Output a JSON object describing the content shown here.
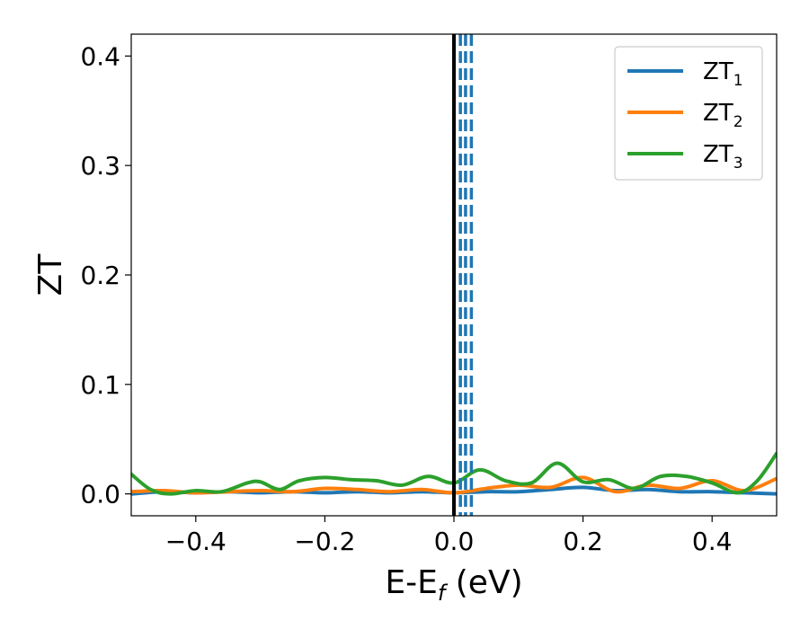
{
  "chart_data": {
    "type": "line",
    "title": "",
    "xlabel": {
      "main": "E-E",
      "sub": "f",
      "unit": " (eV)"
    },
    "ylabel": "ZT",
    "xlim": [
      -0.5,
      0.5
    ],
    "ylim": [
      -0.02,
      0.42
    ],
    "xticks": [
      -0.4,
      -0.2,
      0.0,
      0.2,
      0.4
    ],
    "xtick_labels": [
      "−0.4",
      "−0.2",
      "0.0",
      "0.2",
      "0.4"
    ],
    "yticks": [
      0.0,
      0.1,
      0.2,
      0.3,
      0.4
    ],
    "ytick_labels": [
      "0.0",
      "0.1",
      "0.2",
      "0.3",
      "0.4"
    ],
    "grid": false,
    "legend_position": "top-right",
    "vertical_solid_line": {
      "x": 0.0,
      "color": "#000000"
    },
    "vertical_dashed_lines": {
      "x": [
        0.01,
        0.018,
        0.027
      ],
      "color": "#1f77b4"
    },
    "series": [
      {
        "name": "ZT1",
        "label_main": "ZT",
        "label_sub": "1",
        "color": "#1f77b4",
        "x": [
          -0.5,
          -0.45,
          -0.4,
          -0.35,
          -0.3,
          -0.25,
          -0.2,
          -0.15,
          -0.1,
          -0.05,
          0.0,
          0.05,
          0.1,
          0.15,
          0.2,
          0.25,
          0.3,
          0.35,
          0.4,
          0.45,
          0.5
        ],
        "y": [
          0.0,
          0.002,
          0.001,
          0.002,
          0.001,
          0.002,
          0.001,
          0.002,
          0.001,
          0.002,
          0.001,
          0.002,
          0.002,
          0.004,
          0.006,
          0.003,
          0.004,
          0.002,
          0.002,
          0.001,
          0.0
        ]
      },
      {
        "name": "ZT2",
        "label_main": "ZT",
        "label_sub": "2",
        "color": "#ff7f0e",
        "x": [
          -0.5,
          -0.45,
          -0.4,
          -0.35,
          -0.3,
          -0.25,
          -0.2,
          -0.15,
          -0.1,
          -0.05,
          0.0,
          0.05,
          0.1,
          0.15,
          0.2,
          0.25,
          0.3,
          0.35,
          0.4,
          0.45,
          0.5
        ],
        "y": [
          0.002,
          0.003,
          0.001,
          0.002,
          0.003,
          0.002,
          0.005,
          0.004,
          0.002,
          0.004,
          0.001,
          0.005,
          0.008,
          0.006,
          0.015,
          0.002,
          0.008,
          0.005,
          0.012,
          0.003,
          0.014
        ]
      },
      {
        "name": "ZT3",
        "label_main": "ZT",
        "label_sub": "3",
        "color": "#2ca02c",
        "x": [
          -0.5,
          -0.47,
          -0.44,
          -0.4,
          -0.36,
          -0.32,
          -0.3,
          -0.27,
          -0.24,
          -0.2,
          -0.16,
          -0.12,
          -0.08,
          -0.04,
          0.0,
          0.04,
          0.08,
          0.12,
          0.16,
          0.2,
          0.24,
          0.28,
          0.32,
          0.36,
          0.4,
          0.44,
          0.47,
          0.5
        ],
        "y": [
          0.018,
          0.004,
          0.0,
          0.003,
          0.002,
          0.01,
          0.011,
          0.004,
          0.012,
          0.015,
          0.013,
          0.012,
          0.008,
          0.016,
          0.01,
          0.022,
          0.012,
          0.01,
          0.028,
          0.011,
          0.013,
          0.005,
          0.016,
          0.016,
          0.01,
          0.001,
          0.012,
          0.037
        ]
      }
    ]
  }
}
